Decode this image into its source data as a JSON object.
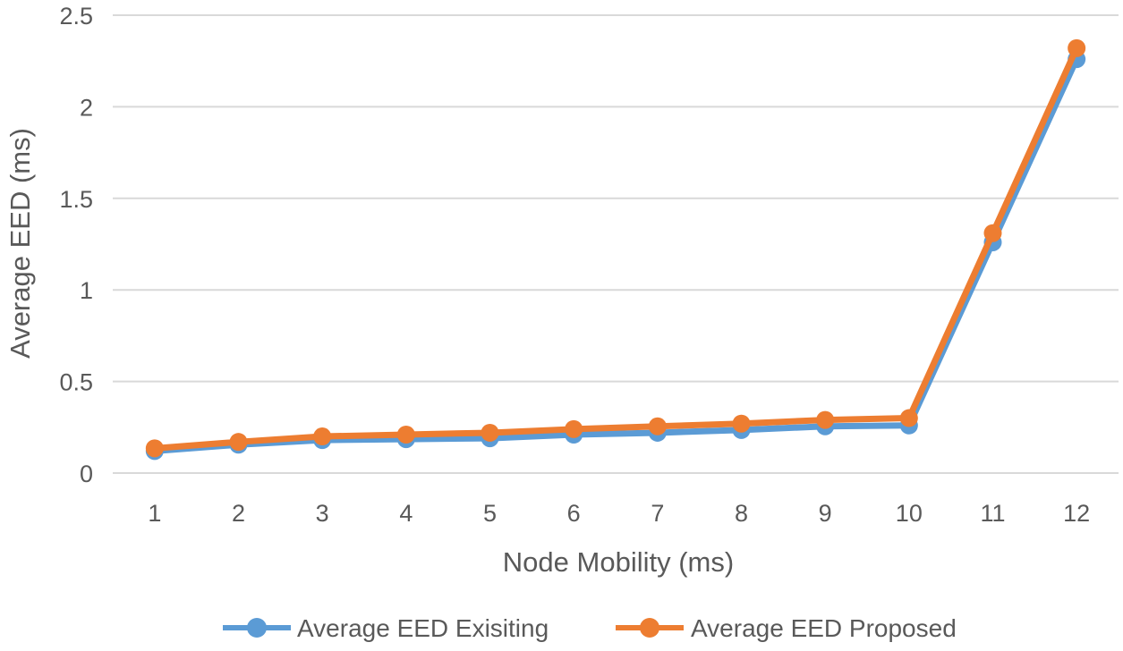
{
  "chart_data": {
    "type": "line",
    "title": "",
    "xlabel": "Node Mobility (ms)",
    "ylabel": "Average EED (ms)",
    "categories": [
      "1",
      "2",
      "3",
      "4",
      "5",
      "6",
      "7",
      "8",
      "9",
      "10",
      "11",
      "12"
    ],
    "ylim": [
      0,
      2.5
    ],
    "yticks": [
      0,
      0.5,
      1,
      1.5,
      2,
      2.5
    ],
    "ytick_labels": [
      "0",
      "0.5",
      "1",
      "1.5",
      "2",
      "2.5"
    ],
    "grid": true,
    "legend_position": "bottom",
    "series": [
      {
        "name": "Average EED Exisiting",
        "color": "#5B9BD5",
        "values": [
          0.12,
          0.155,
          0.18,
          0.185,
          0.19,
          0.21,
          0.22,
          0.235,
          0.255,
          0.26,
          1.26,
          2.26
        ]
      },
      {
        "name": "Average EED Proposed",
        "color": "#ED7D31",
        "values": [
          0.135,
          0.17,
          0.2,
          0.21,
          0.22,
          0.24,
          0.255,
          0.27,
          0.29,
          0.3,
          1.31,
          2.32
        ]
      }
    ]
  }
}
